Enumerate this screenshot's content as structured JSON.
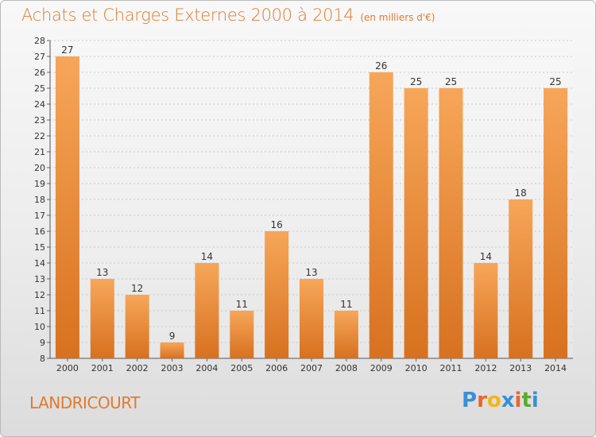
{
  "header": {
    "title": "Achats et Charges Externes 2000 à 2014",
    "unit_note": "(en milliers d'€)"
  },
  "footer": {
    "commune": "LANDRICOURT",
    "logo_text": "Proxiti",
    "logo_colors": [
      "#3a8fd6",
      "#e8662a",
      "#f2b614",
      "#3a8fd6",
      "#e8662a",
      "#5aaa34",
      "#3a8fd6"
    ]
  },
  "colors": {
    "accent": "#e07a2e",
    "bar_light": "#f7a659",
    "bar_dark": "#d7711f",
    "grid": "#c8c8c8"
  },
  "chart_data": {
    "type": "bar",
    "title": "Achats et Charges Externes 2000 à 2014",
    "subtitle": "(en milliers d'€)",
    "xlabel": "",
    "ylabel": "",
    "categories": [
      "2000",
      "2001",
      "2002",
      "2003",
      "2004",
      "2005",
      "2006",
      "2007",
      "2008",
      "2009",
      "2010",
      "2011",
      "2012",
      "2013",
      "2014"
    ],
    "values": [
      27,
      13,
      12,
      9,
      14,
      11,
      16,
      13,
      11,
      26,
      25,
      25,
      14,
      18,
      25
    ],
    "ylim": [
      8,
      28
    ],
    "yticks": [
      8,
      9,
      10,
      11,
      12,
      13,
      14,
      15,
      16,
      17,
      18,
      19,
      20,
      21,
      22,
      23,
      24,
      25,
      26,
      27,
      28
    ],
    "grid": true,
    "data_labels": true
  }
}
